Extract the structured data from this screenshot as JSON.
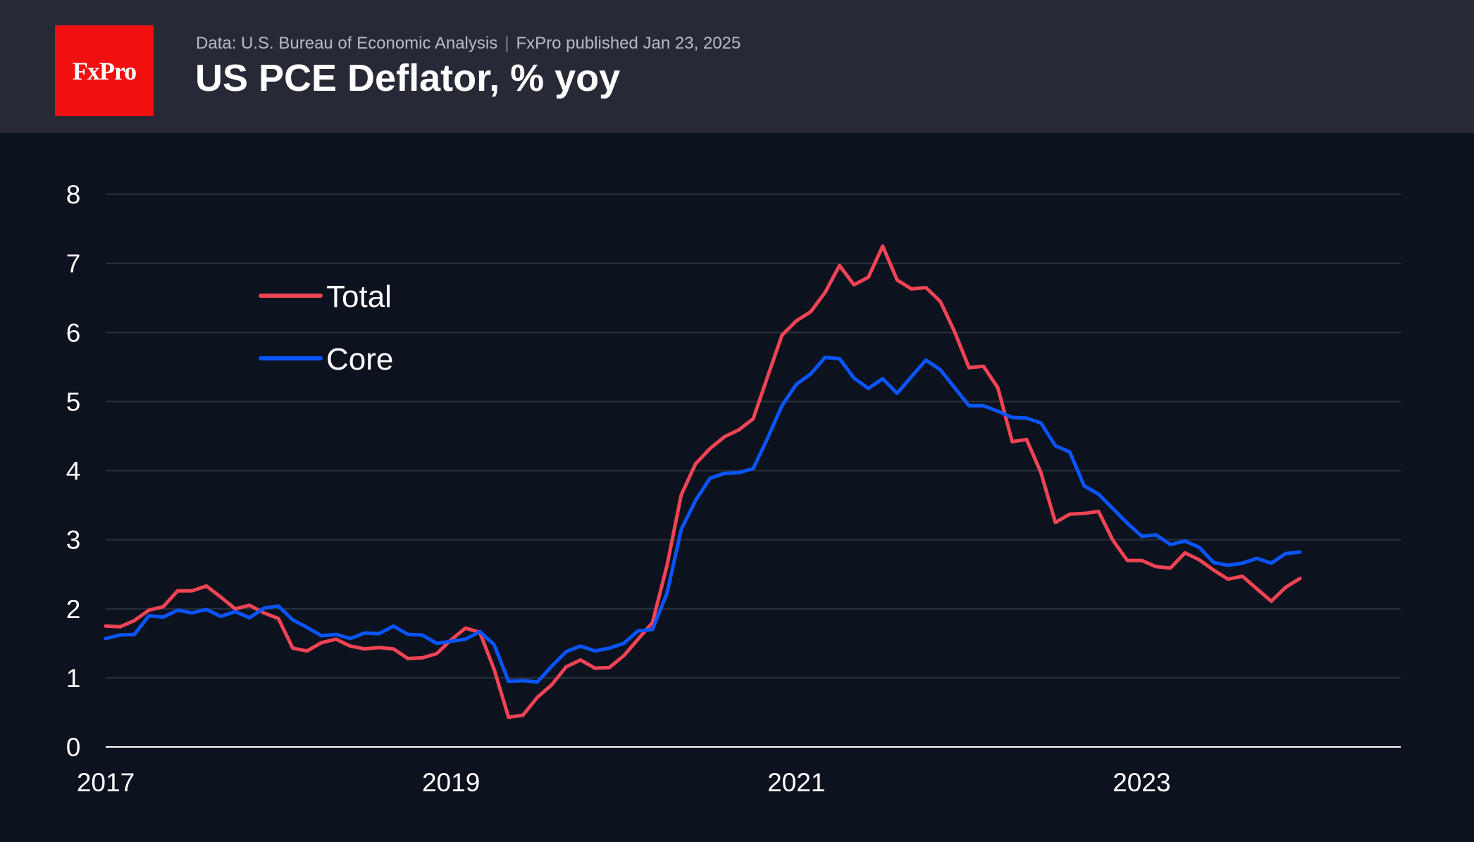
{
  "header": {
    "logo_text": "FxPro",
    "source": "Data: U.S. Bureau of Economic Analysis",
    "separator": "|",
    "published": "FxPro published Jan 23, 2025",
    "title": "US PCE Deflator, % yoy"
  },
  "colors": {
    "background": "#0d121f",
    "header": "#272a36",
    "brand": "#f01010",
    "total": "#f04455",
    "core": "#0a55ff",
    "grid": "#2a303e",
    "axis": "#ffffff"
  },
  "chart_data": {
    "type": "line",
    "title": "US PCE Deflator, % yoy",
    "xlabel": "",
    "ylabel": "",
    "x_start": "2017-01",
    "frequency": "monthly",
    "xlim": [
      2017.0,
      2024.5
    ],
    "ylim": [
      0,
      8
    ],
    "yticks": [
      0,
      1,
      2,
      3,
      4,
      5,
      6,
      7,
      8
    ],
    "xticks": [
      2017,
      2019,
      2021,
      2023
    ],
    "xtick_labels": [
      "2017",
      "2019",
      "2021",
      "2023"
    ],
    "grid": true,
    "legend_position": "top-left",
    "series": [
      {
        "name": "Total",
        "color": "#f04455",
        "values": [
          1.75,
          1.74,
          1.83,
          1.98,
          2.03,
          2.26,
          2.26,
          2.33,
          2.17,
          2.0,
          2.05,
          1.94,
          1.86,
          1.43,
          1.39,
          1.51,
          1.56,
          1.46,
          1.42,
          1.44,
          1.42,
          1.28,
          1.29,
          1.35,
          1.55,
          1.72,
          1.66,
          1.12,
          0.43,
          0.46,
          0.72,
          0.9,
          1.16,
          1.26,
          1.14,
          1.15,
          1.32,
          1.56,
          1.8,
          2.62,
          3.65,
          4.1,
          4.32,
          4.49,
          4.59,
          4.75,
          5.36,
          5.96,
          6.17,
          6.3,
          6.58,
          6.97,
          6.69,
          6.8,
          7.25,
          6.76,
          6.63,
          6.65,
          6.45,
          6.01,
          5.49,
          5.51,
          5.2,
          4.42,
          4.45,
          3.97,
          3.25,
          3.37,
          3.38,
          3.41,
          2.99,
          2.7,
          2.7,
          2.61,
          2.59,
          2.81,
          2.71,
          2.56,
          2.43,
          2.47,
          2.29,
          2.11,
          2.31,
          2.44
        ]
      },
      {
        "name": "Core",
        "color": "#0a55ff",
        "values": [
          1.57,
          1.62,
          1.63,
          1.9,
          1.88,
          1.98,
          1.94,
          1.99,
          1.89,
          1.96,
          1.87,
          2.01,
          2.04,
          1.84,
          1.73,
          1.61,
          1.63,
          1.57,
          1.65,
          1.64,
          1.75,
          1.63,
          1.62,
          1.5,
          1.53,
          1.56,
          1.67,
          1.48,
          0.95,
          0.96,
          0.94,
          1.17,
          1.38,
          1.46,
          1.39,
          1.43,
          1.5,
          1.68,
          1.7,
          2.22,
          3.15,
          3.57,
          3.89,
          3.96,
          3.97,
          4.03,
          4.47,
          4.94,
          5.25,
          5.4,
          5.64,
          5.62,
          5.34,
          5.19,
          5.33,
          5.12,
          5.36,
          5.6,
          5.46,
          5.2,
          4.94,
          4.94,
          4.86,
          4.77,
          4.76,
          4.69,
          4.36,
          4.27,
          3.78,
          3.66,
          3.45,
          3.24,
          3.05,
          3.07,
          2.93,
          2.98,
          2.89,
          2.67,
          2.63,
          2.66,
          2.73,
          2.66,
          2.8,
          2.82
        ]
      }
    ]
  }
}
